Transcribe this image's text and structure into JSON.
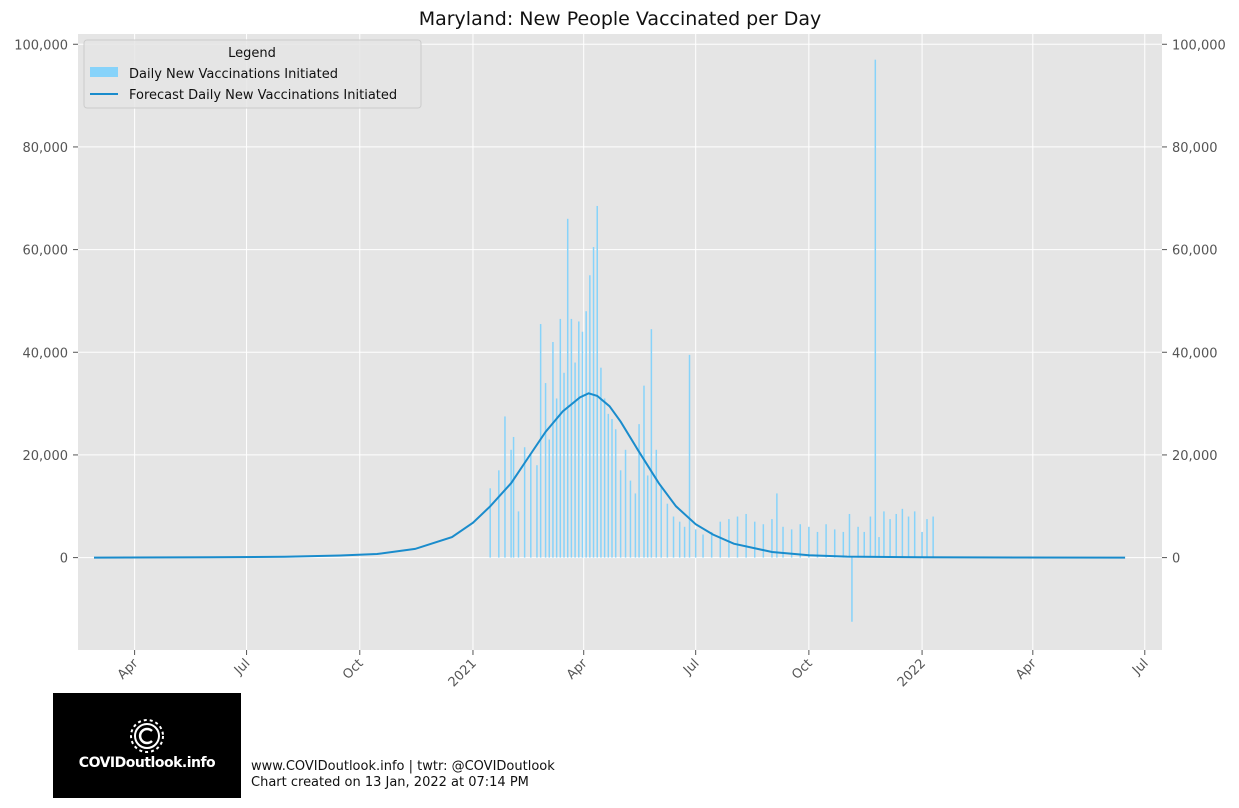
{
  "chart_data": {
    "type": "bar",
    "title": "Maryland: New People Vaccinated per Day",
    "xlabel": "",
    "ylabel": "",
    "ylim": [
      -18000,
      102000
    ],
    "y_ticks": [
      0,
      20000,
      40000,
      60000,
      80000,
      100000
    ],
    "y_tick_labels": [
      "0",
      "20,000",
      "40,000",
      "60,000",
      "80,000",
      "100,000"
    ],
    "x_range": [
      "2020-02-15",
      "2022-07-15"
    ],
    "x_ticks": [
      "2020-04-01",
      "2020-07-01",
      "2020-10-01",
      "2021-01-01",
      "2021-04-01",
      "2021-07-01",
      "2021-10-01",
      "2022-01-01",
      "2022-04-01",
      "2022-07-01"
    ],
    "x_tick_labels": [
      "Apr",
      "Jul",
      "Oct",
      "2021",
      "Apr",
      "Jul",
      "Oct",
      "2022",
      "Apr",
      "Jul"
    ],
    "grid": true,
    "legend_title": "Legend",
    "legend_position": "top-left",
    "colors": {
      "bars": "#87d3fa",
      "forecast": "#1a8ccc",
      "background": "#e5e5e5",
      "grid": "#ffffff"
    },
    "series": [
      {
        "name": "Daily New Vaccinations Initiated",
        "kind": "bar",
        "points": [
          [
            "2021-01-15",
            13500
          ],
          [
            "2021-01-22",
            17000
          ],
          [
            "2021-01-27",
            27500
          ],
          [
            "2021-02-01",
            21000
          ],
          [
            "2021-02-03",
            23500
          ],
          [
            "2021-02-07",
            9000
          ],
          [
            "2021-02-12",
            21500
          ],
          [
            "2021-02-17",
            20000
          ],
          [
            "2021-02-22",
            18000
          ],
          [
            "2021-02-25",
            45500
          ],
          [
            "2021-03-01",
            34000
          ],
          [
            "2021-03-04",
            23000
          ],
          [
            "2021-03-07",
            42000
          ],
          [
            "2021-03-10",
            31000
          ],
          [
            "2021-03-13",
            46500
          ],
          [
            "2021-03-16",
            36000
          ],
          [
            "2021-03-19",
            66000
          ],
          [
            "2021-03-22",
            46500
          ],
          [
            "2021-03-25",
            38000
          ],
          [
            "2021-03-28",
            46000
          ],
          [
            "2021-03-31",
            44000
          ],
          [
            "2021-04-03",
            48000
          ],
          [
            "2021-04-06",
            55000
          ],
          [
            "2021-04-09",
            60500
          ],
          [
            "2021-04-12",
            68500
          ],
          [
            "2021-04-15",
            37000
          ],
          [
            "2021-04-18",
            31000
          ],
          [
            "2021-04-21",
            28000
          ],
          [
            "2021-04-24",
            27000
          ],
          [
            "2021-04-27",
            25000
          ],
          [
            "2021-05-01",
            17000
          ],
          [
            "2021-05-05",
            21000
          ],
          [
            "2021-05-09",
            15000
          ],
          [
            "2021-05-13",
            12500
          ],
          [
            "2021-05-16",
            26000
          ],
          [
            "2021-05-20",
            33500
          ],
          [
            "2021-05-23",
            16000
          ],
          [
            "2021-05-26",
            44500
          ],
          [
            "2021-05-30",
            21000
          ],
          [
            "2021-06-03",
            14000
          ],
          [
            "2021-06-08",
            10500
          ],
          [
            "2021-06-13",
            8000
          ],
          [
            "2021-06-18",
            7000
          ],
          [
            "2021-06-22",
            6000
          ],
          [
            "2021-06-26",
            39500
          ],
          [
            "2021-07-01",
            5500
          ],
          [
            "2021-07-07",
            4500
          ],
          [
            "2021-07-14",
            5000
          ],
          [
            "2021-07-21",
            7000
          ],
          [
            "2021-07-28",
            7500
          ],
          [
            "2021-08-04",
            8000
          ],
          [
            "2021-08-11",
            8500
          ],
          [
            "2021-08-18",
            7000
          ],
          [
            "2021-08-25",
            6500
          ],
          [
            "2021-09-01",
            7500
          ],
          [
            "2021-09-05",
            12500
          ],
          [
            "2021-09-10",
            6000
          ],
          [
            "2021-09-17",
            5500
          ],
          [
            "2021-09-24",
            6500
          ],
          [
            "2021-10-01",
            6000
          ],
          [
            "2021-10-08",
            5000
          ],
          [
            "2021-10-15",
            6500
          ],
          [
            "2021-10-22",
            5500
          ],
          [
            "2021-10-29",
            5000
          ],
          [
            "2021-11-03",
            8500
          ],
          [
            "2021-11-05",
            -12500
          ],
          [
            "2021-11-10",
            6000
          ],
          [
            "2021-11-15",
            5000
          ],
          [
            "2021-11-20",
            8000
          ],
          [
            "2021-11-24",
            97000
          ],
          [
            "2021-11-27",
            4000
          ],
          [
            "2021-12-01",
            9000
          ],
          [
            "2021-12-06",
            7500
          ],
          [
            "2021-12-11",
            8500
          ],
          [
            "2021-12-16",
            9500
          ],
          [
            "2021-12-21",
            8000
          ],
          [
            "2021-12-26",
            9000
          ],
          [
            "2022-01-01",
            5000
          ],
          [
            "2022-01-05",
            7500
          ],
          [
            "2022-01-10",
            8000
          ]
        ]
      },
      {
        "name": "Forecast Daily New Vaccinations Initiated",
        "kind": "line",
        "points": [
          [
            "2020-02-28",
            0
          ],
          [
            "2020-06-01",
            60
          ],
          [
            "2020-08-01",
            150
          ],
          [
            "2020-09-15",
            400
          ],
          [
            "2020-10-15",
            700
          ],
          [
            "2020-11-15",
            1700
          ],
          [
            "2020-12-15",
            4000
          ],
          [
            "2021-01-01",
            6800
          ],
          [
            "2021-01-15",
            10000
          ],
          [
            "2021-02-01",
            14500
          ],
          [
            "2021-02-15",
            19500
          ],
          [
            "2021-03-01",
            24500
          ],
          [
            "2021-03-15",
            28500
          ],
          [
            "2021-03-29",
            31200
          ],
          [
            "2021-04-05",
            32000
          ],
          [
            "2021-04-12",
            31500
          ],
          [
            "2021-04-22",
            29500
          ],
          [
            "2021-05-01",
            26500
          ],
          [
            "2021-05-15",
            21000
          ],
          [
            "2021-06-01",
            14500
          ],
          [
            "2021-06-15",
            10000
          ],
          [
            "2021-07-01",
            6500
          ],
          [
            "2021-07-15",
            4500
          ],
          [
            "2021-08-01",
            2700
          ],
          [
            "2021-09-01",
            1100
          ],
          [
            "2021-10-01",
            450
          ],
          [
            "2021-11-01",
            200
          ],
          [
            "2022-01-01",
            60
          ],
          [
            "2022-06-15",
            0
          ]
        ]
      }
    ]
  },
  "footer": {
    "line1": "www.COVIDoutlook.info | twtr: @COVIDoutlook",
    "line2": "Chart created on 13 Jan, 2022 at 07:14 PM"
  },
  "logo": {
    "text": "COVIDoutlook.info",
    "icon": "virus-icon"
  }
}
